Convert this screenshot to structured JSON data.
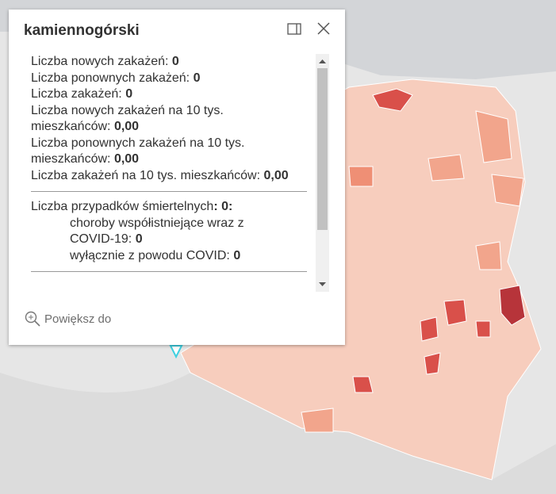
{
  "popup": {
    "title": "kamiennogórski",
    "fields": [
      {
        "label": "Liczba nowych zakażeń:",
        "value": "0"
      },
      {
        "label": "Liczba ponownych zakażeń:",
        "value": "0"
      },
      {
        "label": "Liczba zakażeń:",
        "value": "0"
      },
      {
        "label": "Liczba nowych zakażeń na 10 tys. mieszkańców:",
        "value": "0,00"
      },
      {
        "label": "Liczba ponownych zakażeń na 10 tys. mieszkańców:",
        "value": "0,00"
      },
      {
        "label": "Liczba zakażeń na 10 tys. mieszkańców:",
        "value": "0,00"
      }
    ],
    "deaths": {
      "label": "Liczba przypadków śmiertelnych",
      "value": ": 0:",
      "items": [
        {
          "label": "choroby współistniejące wraz z COVID-19:",
          "value": "0"
        },
        {
          "label": "wyłącznie z powodu COVID:",
          "value": "0"
        }
      ]
    },
    "action": "Powiększ do"
  }
}
